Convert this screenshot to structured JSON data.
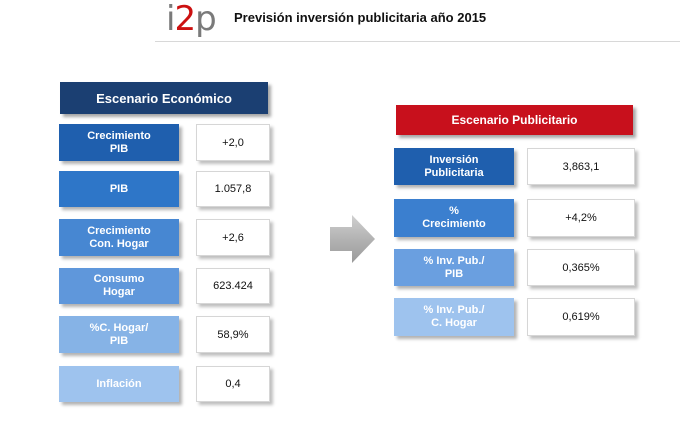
{
  "header": {
    "logo_prefix": "i",
    "logo_accent": "2",
    "logo_suffix": "p",
    "title": "Previsión inversión publicitaria año 2015"
  },
  "economico": {
    "title": "Escenario Económico",
    "rows": [
      {
        "label": "Crecimiento\nPIB",
        "value": "+2,0",
        "color": "#1f5fae"
      },
      {
        "label": "PIB",
        "value": "1.057,8",
        "color": "#2e76c8"
      },
      {
        "label": "Crecimiento\nCon. Hogar",
        "value": "+2,6",
        "color": "#4787d2"
      },
      {
        "label": "Consumo\nHogar",
        "value": "623.424",
        "color": "#5f97db"
      },
      {
        "label": "%C. Hogar/\nPIB",
        "value": "58,9%",
        "color": "#86b3e6"
      },
      {
        "label": "Inflación",
        "value": "0,4",
        "color": "#9ec3ee"
      }
    ]
  },
  "publicitario": {
    "title": "Escenario Publicitario",
    "rows": [
      {
        "label": "Inversión\nPublicitaria",
        "value": "3,863,1",
        "color": "#1f5fae"
      },
      {
        "label": "%\nCrecimiento",
        "value": "+4,2%",
        "color": "#3b7fcf"
      },
      {
        "label": "% Inv. Pub./\nPIB",
        "value": "0,365%",
        "color": "#6a9fe0"
      },
      {
        "label": "% Inv. Pub./\nC. Hogar",
        "value": "0,619%",
        "color": "#9ec3ee"
      }
    ]
  },
  "colors": {
    "eco_header": "#1b3f72",
    "pub_header": "#c8101c",
    "arrow": "#b9b9b9"
  }
}
